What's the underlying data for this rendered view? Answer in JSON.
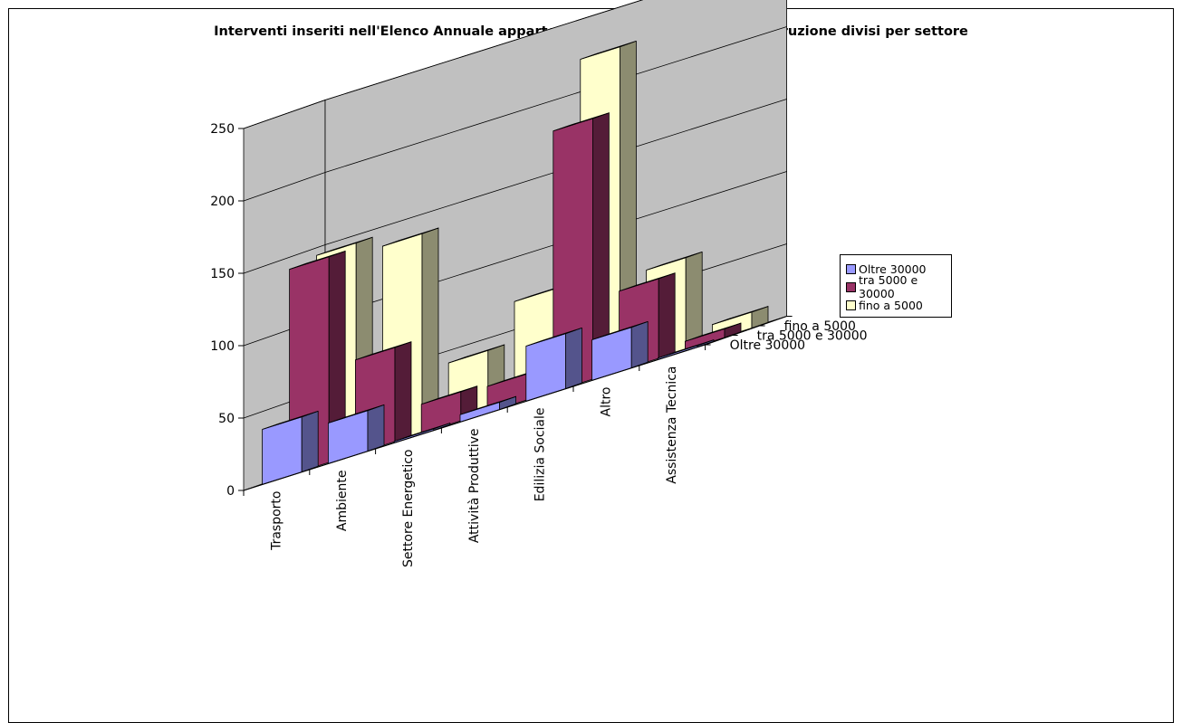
{
  "chart_data": {
    "type": "bar",
    "title": "Interventi inseriti nell'Elenco Annuale appartenenti alla tipologia nuova costruzione divisi per settore",
    "categories": [
      "Trasporto",
      "Ambiente",
      "Settore Energetico",
      "Attività Produttive",
      "Edilizia Sociale",
      "Altro",
      "Assistenza Tecnica"
    ],
    "series": [
      {
        "name": "Oltre 30000",
        "color": "#9999ff",
        "values": [
          38,
          28,
          1,
          5,
          38,
          28,
          1
        ]
      },
      {
        "name": "tra 5000 e 30000",
        "color": "#993366",
        "values": [
          142,
          65,
          20,
          18,
          180,
          55,
          6
        ]
      },
      {
        "name": "fino a 5000",
        "color": "#ffffcc",
        "values": [
          145,
          137,
          42,
          70,
          223,
          63,
          11
        ]
      }
    ],
    "yticks": [
      0,
      50,
      100,
      150,
      200,
      250
    ],
    "ylim": [
      0,
      250
    ],
    "legend_position": "right",
    "grid": true,
    "projection": "3d-column"
  }
}
